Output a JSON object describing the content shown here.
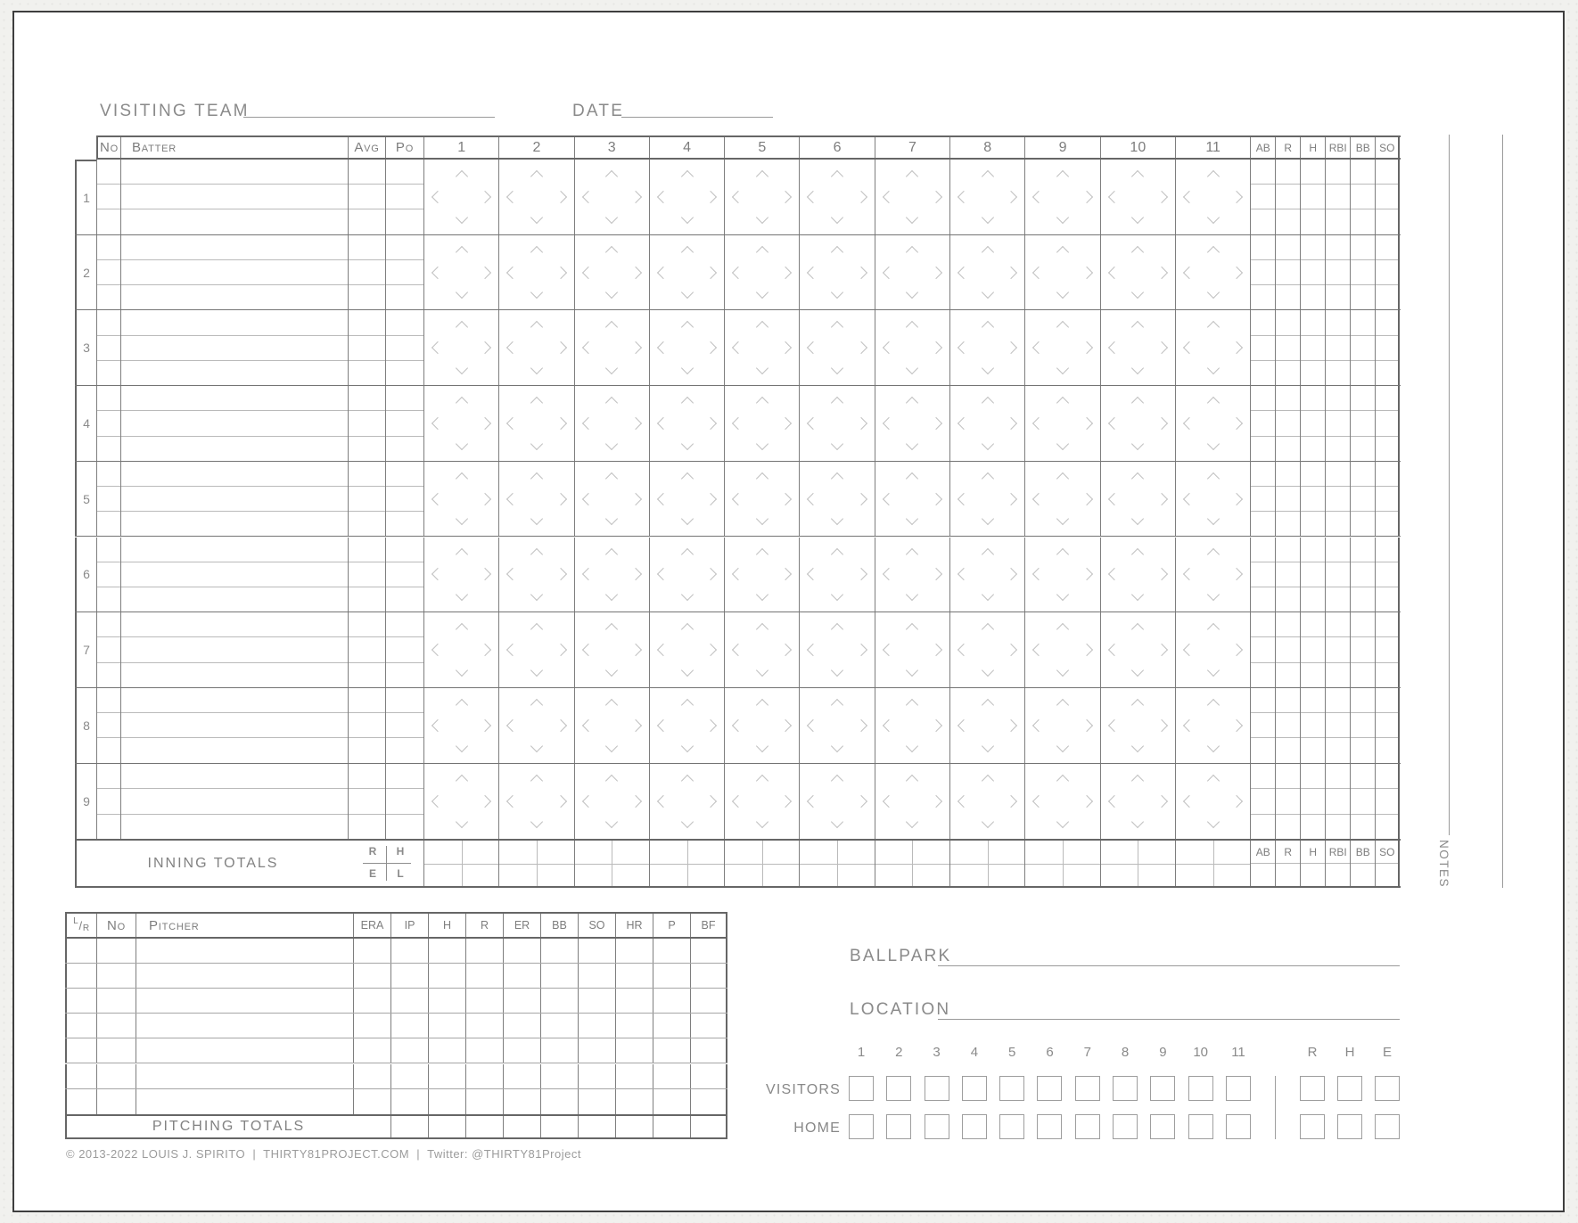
{
  "form": {
    "visiting_team_label": "VISITING TEAM",
    "date_label": "DATE",
    "ballpark_label": "BALLPARK",
    "location_label": "LOCATION",
    "notes_label": "NOTES"
  },
  "batting": {
    "order": [
      "1",
      "2",
      "3",
      "4",
      "5",
      "6",
      "7",
      "8",
      "9"
    ],
    "columns": {
      "no": "No",
      "batter": "Batter",
      "avg": "Avg",
      "po": "Po"
    },
    "innings": [
      "1",
      "2",
      "3",
      "4",
      "5",
      "6",
      "7",
      "8",
      "9",
      "10",
      "11"
    ],
    "stat_columns": [
      "AB",
      "R",
      "H",
      "RBI",
      "BB",
      "SO"
    ],
    "inning_totals": {
      "label": "INNING TOTALS",
      "legend": {
        "top_left": "R",
        "top_right": "H",
        "bottom_left": "E",
        "bottom_right": "L"
      }
    }
  },
  "pitching": {
    "hand_column": {
      "top": "L",
      "bottom": "R"
    },
    "columns": {
      "no": "No",
      "pitcher": "Pitcher"
    },
    "stat_columns": [
      "ERA",
      "IP",
      "H",
      "R",
      "ER",
      "BB",
      "SO",
      "HR",
      "P",
      "BF"
    ],
    "row_count": 7,
    "totals_label": "PITCHING TOTALS"
  },
  "linescore": {
    "innings": [
      "1",
      "2",
      "3",
      "4",
      "5",
      "6",
      "7",
      "8",
      "9",
      "10",
      "11"
    ],
    "rhe": [
      "R",
      "H",
      "E"
    ],
    "teams": [
      "VISITORS",
      "HOME"
    ]
  },
  "footer": {
    "copyright": "© 2013-2022 LOUIS J. SPIRITO  |  THIRTY81PROJECT.COM  |  Twitter: @THIRTY81Project"
  },
  "colors": {
    "page_bg": "#f1f1ee",
    "sheet_border": "#3e3e3e",
    "line_dark": "#666666",
    "line_mid": "#7e7e7e",
    "line_light": "#bababa",
    "text_gray": "#8a8a8a",
    "chevron": "#c0c0c0",
    "box_border": "#9e9e9e"
  }
}
